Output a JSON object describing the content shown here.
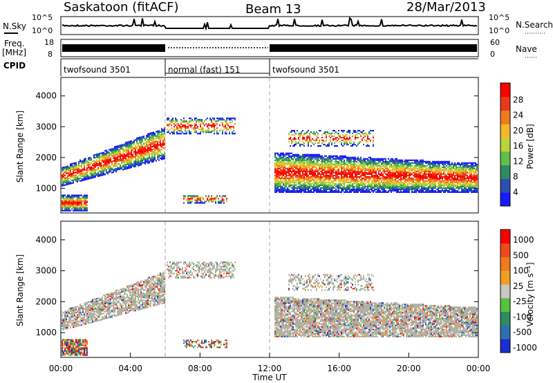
{
  "header": {
    "station": "Saskatoon (fitACF)",
    "beam": "Beam 13",
    "date": "28/Mar/2013"
  },
  "top_panels": {
    "nsky_label": "N.Sky",
    "nsearch_label": "N.Search",
    "freq_label_1": "Freq.",
    "freq_label_2": "[MHz]",
    "nave_label": "Nave",
    "cpid_label": "CPID",
    "nsky_ticks": [
      "10^5",
      "10^0"
    ],
    "nsearch_ticks": [
      "10^5",
      "10^0"
    ],
    "freq_ticks": [
      "18",
      "8"
    ],
    "nave_ticks": [
      "60",
      "0"
    ]
  },
  "colors": {
    "power_scale": [
      "#1a1aff",
      "#2a4fb0",
      "#2e8a62",
      "#5fbf4a",
      "#b8d63a",
      "#f5b82a",
      "#f07a1e",
      "#e83a1a",
      "#ff0000"
    ],
    "velocity_scale": [
      "#1a2fcf",
      "#2f6fb0",
      "#2e8a62",
      "#55c33d",
      "#c8c8c0",
      "#f0a020",
      "#f07a1e",
      "#f04a1a",
      "#ff0000"
    ],
    "ground_scatter": "#b0b0a8"
  },
  "chart_data": [
    {
      "type": "line",
      "name": "operating-parameters",
      "x_range_hours": [
        0,
        24
      ],
      "cpid_segments": [
        {
          "label": "twofsound 3501",
          "start": 0,
          "end": 6
        },
        {
          "label": "normal (fast) 151",
          "start": 6,
          "end": 12
        },
        {
          "label": "twofsound 3501",
          "start": 12,
          "end": 24
        }
      ]
    },
    {
      "type": "heatmap",
      "name": "power-panel",
      "xlabel": "",
      "ylabel": "Slant Range [km]",
      "ylim": [
        200,
        4600
      ],
      "yticks": [
        "1000",
        "2000",
        "3000",
        "4000"
      ],
      "colorbar_label": "Power [dB]",
      "colorbar_ticks": [
        "4",
        "8",
        "12",
        "16",
        "20",
        "24",
        "28"
      ],
      "colorbar_range": [
        0,
        32
      ]
    },
    {
      "type": "heatmap",
      "name": "velocity-panel",
      "xlabel": "Time UT",
      "ylabel": "Slant Range [km]",
      "ylim": [
        200,
        4600
      ],
      "yticks": [
        "1000",
        "2000",
        "3000",
        "4000"
      ],
      "xticks": [
        "00:00",
        "04:00",
        "08:00",
        "12:00",
        "16:00",
        "20:00",
        "00:00"
      ],
      "colorbar_label": "Velocity [m s⁻¹]",
      "colorbar_ticks": [
        "1000",
        "500",
        "100",
        "25",
        "-25",
        "-100",
        "-500",
        "-1000"
      ]
    }
  ]
}
